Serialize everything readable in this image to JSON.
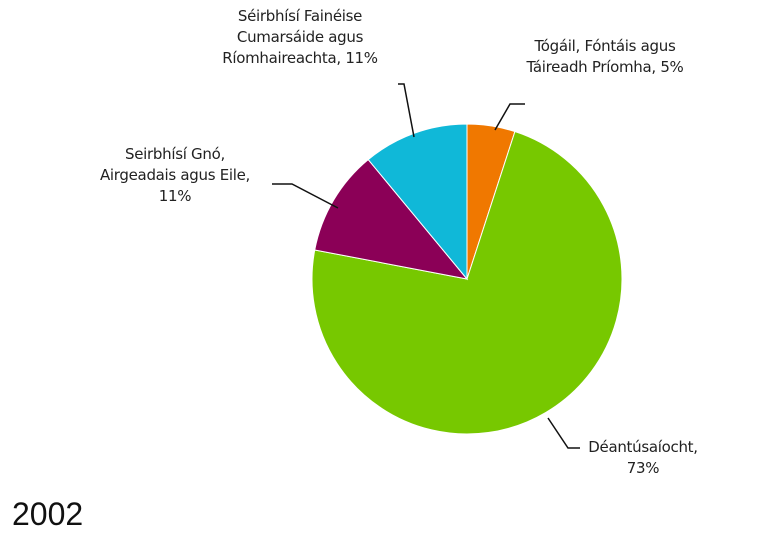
{
  "chart_data": {
    "type": "pie",
    "title": "2002",
    "categories": [
      "Tógáil, Fóntáis agus Táireadh Príomha,",
      "Déantúsaíocht,",
      "Seirbhísí Gnó, Airgeadais agus Eile,",
      "Séirbhísí Fainéise Cumarsáide agus Ríomhaireachta,"
    ],
    "values": [
      5,
      73,
      11,
      11
    ],
    "value_labels": [
      "5%",
      "73%",
      "11%",
      "11%"
    ],
    "colors": [
      "#f07800",
      "#77c800",
      "#8b0057",
      "#10b8d8"
    ]
  }
}
